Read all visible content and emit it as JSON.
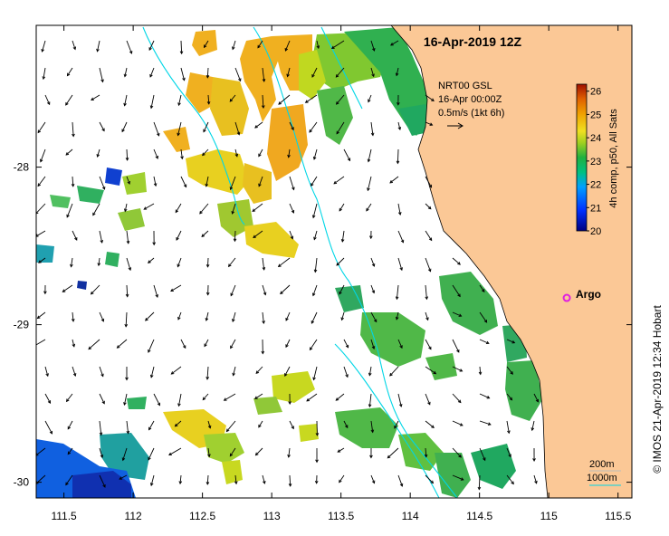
{
  "map": {
    "title": "16-Apr-2019 12Z",
    "lon_ticks": [
      "111.5",
      "112",
      "112.5",
      "113",
      "113.5",
      "114",
      "114.5",
      "115",
      "115.5"
    ],
    "lat_ticks": [
      "-28",
      "-29",
      "-30"
    ],
    "lon_range": [
      111.3,
      115.6
    ],
    "lat_range": [
      -30.1,
      -27.1
    ],
    "land_color": "#fbc896",
    "sea_color": "#ffffff",
    "isobath_color": "#00d6e6"
  },
  "current_info": {
    "line1": "NRT00 GSL",
    "line2": "16-Apr 00:00Z",
    "line3": "0.5m/s (1kt 6h)"
  },
  "colorbar": {
    "label": "4h comp, p50, All Sats",
    "ticks": [
      "26",
      "25",
      "24",
      "23",
      "22",
      "21",
      "20"
    ],
    "min": 20,
    "max": 26.3
  },
  "platform": {
    "name": "Argo",
    "marker_color": "#e020e0",
    "lon": 115.13,
    "lat": -28.83
  },
  "depth_legend": {
    "shallow": "200m",
    "deep": "1000m"
  },
  "credit": "© IMOS 21-Apr-2019 12:34 Hobart"
}
